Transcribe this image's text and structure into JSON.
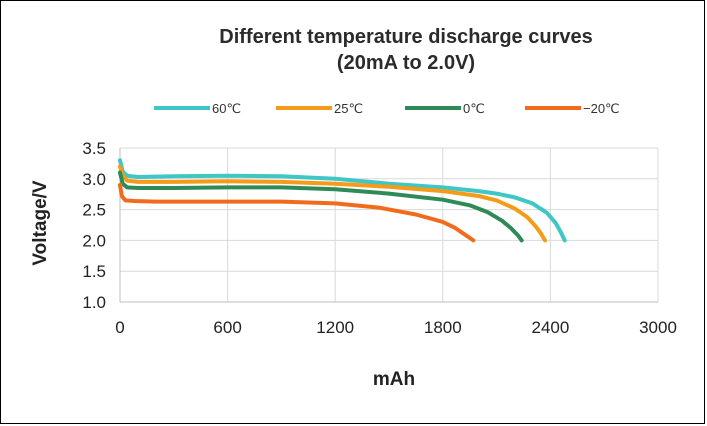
{
  "chart_data": {
    "type": "line",
    "title_line1": "Different temperature discharge curves",
    "title_line2": "(20mA to 2.0V)",
    "xlabel": "mAh",
    "ylabel": "Voltage/V",
    "xlim": [
      0,
      3000
    ],
    "ylim": [
      1.0,
      3.5
    ],
    "x_ticks": [
      "0",
      "600",
      "1200",
      "1800",
      "2400",
      "3000"
    ],
    "y_ticks": [
      "1.0",
      "1.5",
      "2.0",
      "2.5",
      "3.0",
      "3.5"
    ],
    "x_tick_values": [
      0,
      600,
      1200,
      1800,
      2400,
      3000
    ],
    "y_tick_values": [
      1.0,
      1.5,
      2.0,
      2.5,
      3.0,
      3.5
    ],
    "grid": true,
    "legend_position": "top",
    "series": [
      {
        "name": "60℃",
        "color": "#3ec7c6",
        "x": [
          0,
          15,
          40,
          100,
          300,
          600,
          900,
          1200,
          1500,
          1800,
          2000,
          2100,
          2200,
          2300,
          2380,
          2430,
          2460,
          2480
        ],
        "y": [
          3.3,
          3.12,
          3.05,
          3.03,
          3.04,
          3.05,
          3.04,
          3.0,
          2.92,
          2.86,
          2.8,
          2.76,
          2.7,
          2.6,
          2.45,
          2.28,
          2.12,
          2.0
        ]
      },
      {
        "name": "25℃",
        "color": "#f59b1a",
        "x": [
          0,
          15,
          40,
          100,
          300,
          600,
          900,
          1200,
          1500,
          1800,
          2000,
          2100,
          2200,
          2270,
          2320,
          2350,
          2370
        ],
        "y": [
          3.2,
          3.05,
          2.97,
          2.95,
          2.95,
          2.96,
          2.95,
          2.92,
          2.87,
          2.8,
          2.72,
          2.65,
          2.52,
          2.38,
          2.22,
          2.1,
          2.0
        ]
      },
      {
        "name": "0℃",
        "color": "#2e8b57",
        "x": [
          0,
          15,
          40,
          100,
          300,
          600,
          900,
          1200,
          1500,
          1800,
          1950,
          2050,
          2130,
          2180,
          2220,
          2240
        ],
        "y": [
          3.1,
          2.92,
          2.86,
          2.85,
          2.85,
          2.86,
          2.86,
          2.83,
          2.76,
          2.66,
          2.57,
          2.46,
          2.32,
          2.2,
          2.08,
          2.0
        ]
      },
      {
        "name": "−20℃",
        "color": "#f26b1d",
        "x": [
          0,
          10,
          30,
          80,
          200,
          600,
          900,
          1200,
          1450,
          1650,
          1800,
          1870,
          1920,
          1950,
          1970
        ],
        "y": [
          2.9,
          2.72,
          2.65,
          2.64,
          2.63,
          2.63,
          2.63,
          2.6,
          2.53,
          2.42,
          2.3,
          2.2,
          2.1,
          2.04,
          2.0
        ]
      }
    ]
  }
}
